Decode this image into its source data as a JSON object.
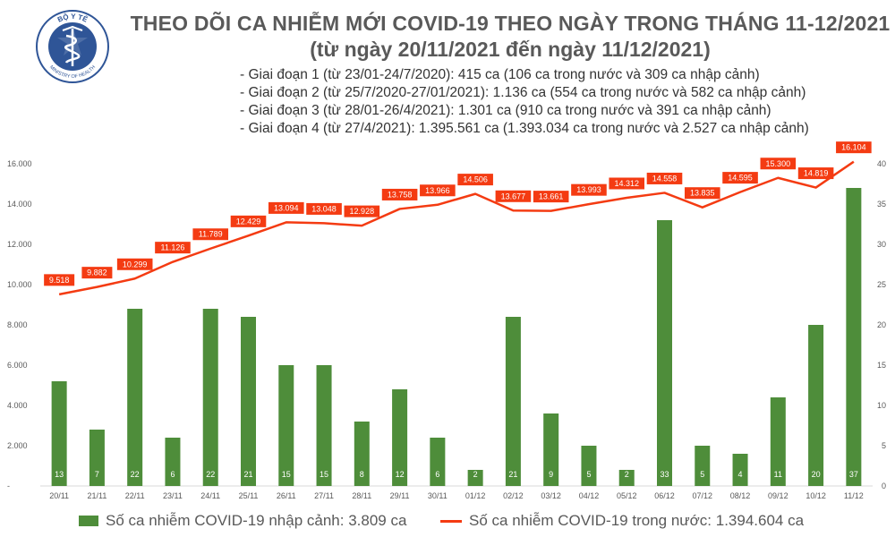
{
  "header": {
    "title": "THEO DÕI CA NHIỄM MỚI COVID-19 THEO NGÀY TRONG THÁNG 11-12/2021",
    "subtitle": "(từ ngày 20/11/2021 đến ngày 11/12/2021)",
    "logo_text": "BỘ Y TẾ",
    "logo_subtext": "MINISTRY OF HEALTH"
  },
  "phases": [
    "- Giai đoạn 1 (từ 23/01-24/7/2020): 415 ca (106 ca trong nước và 309 ca nhập cảnh)",
    "- Giai đoạn 2 (từ 25/7/2020-27/01/2021): 1.136 ca (554 ca trong nước và 582 ca nhập cảnh)",
    "- Giai đoạn 3 (từ 28/01-26/4/2021): 1.301 ca (910 ca trong nước và 391 ca nhập cảnh)",
    "- Giai đoạn 4 (từ 27/4/2021): 1.395.561 ca (1.393.034 ca trong nước và 2.527 ca nhập cảnh)"
  ],
  "colors": {
    "bar": "#4e8d3a",
    "line": "#f43b12",
    "logo": "#2f5597",
    "grid": "#d9d9d9"
  },
  "chart_data": {
    "type": "bar+line",
    "categories": [
      "20/11",
      "21/11",
      "22/11",
      "23/11",
      "24/11",
      "25/11",
      "26/11",
      "27/11",
      "28/11",
      "29/11",
      "30/11",
      "01/12",
      "02/12",
      "03/12",
      "04/12",
      "05/12",
      "06/12",
      "07/12",
      "08/12",
      "09/12",
      "10/12",
      "11/12"
    ],
    "series": [
      {
        "name": "Số ca nhiễm COVID-19 nhập cảnh: 3.809 ca",
        "type": "bar",
        "axis": "right",
        "values": [
          13,
          7,
          22,
          6,
          22,
          21,
          15,
          15,
          8,
          12,
          6,
          2,
          21,
          9,
          5,
          2,
          33,
          5,
          4,
          11,
          20,
          37
        ]
      },
      {
        "name": "Số ca nhiễm COVID-19 trong nước: 1.394.604 ca",
        "type": "line",
        "axis": "left",
        "values": [
          9518,
          9882,
          10299,
          11126,
          11789,
          12429,
          13094,
          13048,
          12928,
          13758,
          13966,
          14506,
          13677,
          13661,
          13993,
          14312,
          14558,
          13835,
          14595,
          15300,
          14819,
          16104
        ],
        "labels": [
          "9.518",
          "9.882",
          "10.299",
          "11.126",
          "11.789",
          "12.429",
          "13.094",
          "13.048",
          "12.928",
          "13.758",
          "13.966",
          "14.506",
          "13.677",
          "13.661",
          "13.993",
          "14.312",
          "14.558",
          "13.835",
          "14.595",
          "15.300",
          "14.819",
          "16.104"
        ]
      }
    ],
    "y_left": {
      "ylim": [
        0,
        16000
      ],
      "ticks": [
        "-",
        "2.000",
        "4.000",
        "6.000",
        "8.000",
        "10.000",
        "12.000",
        "14.000",
        "16.000"
      ]
    },
    "y_right": {
      "ylim": [
        0,
        40
      ],
      "ticks": [
        "0",
        "5",
        "10",
        "15",
        "20",
        "25",
        "30",
        "35",
        "40"
      ]
    },
    "grid": false,
    "legend_position": "bottom"
  }
}
